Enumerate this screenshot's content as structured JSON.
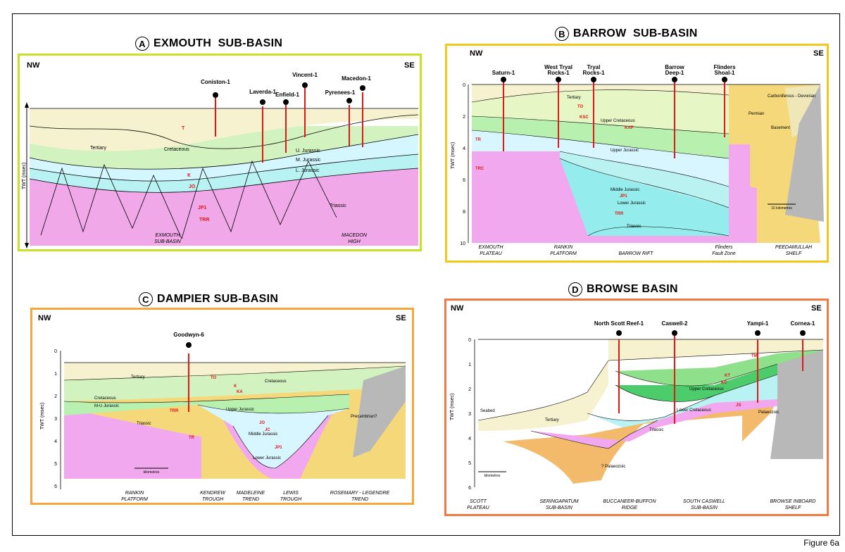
{
  "figure_label": "Figure 6a",
  "panels": {
    "a": {
      "letter": "A",
      "title": "EXMOUTH  SUB-BASIN",
      "border_color": "#c8e028",
      "nw": "NW",
      "se": "SE",
      "axis_label": "TWT (msec)",
      "wells": [
        "Coniston-1",
        "Laverda-1",
        "Enfield-1",
        "Vincent-1",
        "Pyrenees-1",
        "Macedon-1"
      ],
      "units": [
        "Tertiary",
        "Cretaceous",
        "U. Jurassic",
        "M. Jurassic",
        "L. Jurassic",
        "Triassic"
      ],
      "horizons": [
        "T",
        "K",
        "JO",
        "JP1",
        "TRR"
      ],
      "bottom_labels": [
        [
          "EXMOUTH",
          "SUB-BASIN"
        ],
        [
          "MACEDON",
          "HIGH"
        ]
      ]
    },
    "b": {
      "letter": "B",
      "title": "BARROW  SUB-BASIN",
      "border_color": "#f2c81a",
      "nw": "NW",
      "se": "SE",
      "axis_label": "TWT (msec)",
      "ticks": [
        "0",
        "2",
        "4",
        "6",
        "8",
        "10"
      ],
      "wells": [
        [
          "Saturn-1"
        ],
        [
          "West Tryal",
          "Rocks-1"
        ],
        [
          "Tryal",
          "Rocks-1"
        ],
        [
          "Barrow",
          "Deep-1"
        ],
        [
          "Flinders",
          "Shoal-1"
        ]
      ],
      "units": [
        "Tertiary",
        "Upper Cretaceous",
        "Upper Jurassic",
        "Middle Jurassic",
        "Lower Jurassic",
        "Triassic",
        "Permian",
        "Carboniferous - Devonian",
        "Basement"
      ],
      "horizons": [
        "TO",
        "KSC",
        "KAP",
        "TR",
        "JP1",
        "TRR",
        "TRC"
      ],
      "scale_label": "10 kilometres",
      "bottom_labels": [
        [
          "EXMOUTH",
          "PLATEAU"
        ],
        [
          "RANKIN",
          "PLATFORM"
        ],
        [
          "BARROW RIFT"
        ],
        [
          "Flinders",
          "Fault Zone"
        ],
        [
          "PEEDAMULLAH",
          "SHELF"
        ]
      ]
    },
    "c": {
      "letter": "C",
      "title": "DAMPIER SUB-BASIN",
      "border_color": "#f4a83c",
      "nw": "NW",
      "se": "SE",
      "axis_label": "TWT (msec)",
      "ticks": [
        "0",
        "1",
        "2",
        "3",
        "4",
        "5",
        "6"
      ],
      "wells": [
        "Goodwyn-6"
      ],
      "units": [
        "Tertiary",
        "Cretaceous",
        "Cretaceous",
        "M-U Jurassic",
        "Upper Jurassic",
        "Triassic",
        "Middle Jurassic",
        "Lower Jurassic",
        "Precambrian?"
      ],
      "horizons": [
        "TO",
        "K",
        "KA",
        "TRR",
        "JO",
        "JC",
        "JP1",
        "TR"
      ],
      "scale_label": "kilometres",
      "bottom_labels": [
        [
          "RANKIN",
          "PLATFORM"
        ],
        [
          "KENDREW",
          "TROUGH"
        ],
        [
          "MADELEINE",
          "TREND"
        ],
        [
          "LEWIS",
          "TROUGH"
        ],
        [
          "ROSEMARY - LEGENDRE",
          "TREND"
        ]
      ]
    },
    "d": {
      "letter": "D",
      "title": "BROWSE BASIN",
      "border_color": "#ef7a46",
      "nw": "NW",
      "se": "SE",
      "axis_label": "TWT (msec)",
      "ticks": [
        "0",
        "1",
        "2",
        "3",
        "4",
        "5",
        "6"
      ],
      "wells": [
        "North Scott Reef-1",
        "Caswell-2",
        "Yampi-1",
        "Cornea-1"
      ],
      "units": [
        "Seabed",
        "Tertiary",
        "Upper Cretaceous",
        "Lower Cretaceous",
        "Triassic",
        "? Palaeozoic",
        "Palaeozoic"
      ],
      "horizons": [
        "TM",
        "KC",
        "KT",
        "JS"
      ],
      "scale_label": "kilometres",
      "bottom_labels": [
        [
          "SCOTT",
          "PLATEAU"
        ],
        [
          "SERINGAPATUM",
          "SUB-BASIN"
        ],
        [
          "BUCCANEER-BUFFON",
          "RIDGE"
        ],
        [
          "SOUTH CASWELL",
          "SUB-BASIN"
        ],
        [
          "BROWSE INBOARD",
          "SHELF"
        ]
      ]
    }
  }
}
